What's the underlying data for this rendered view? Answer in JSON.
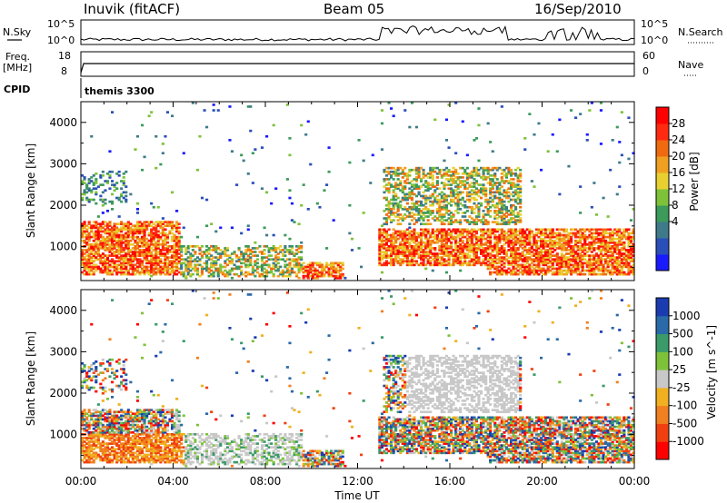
{
  "header": {
    "station": "Inuvik (fitACF)",
    "beam": "Beam 05",
    "date": "16/Sep/2010"
  },
  "status_strips": {
    "nsky_label": "N.Sky",
    "nsky_ticks": [
      "10^5",
      "10^0"
    ],
    "nsearch_label": "N.Search",
    "freq_label": "Freq.",
    "freq_unit": "[MHz]",
    "freq_ticks": [
      "18",
      "8"
    ],
    "nave_ticks": [
      "60",
      "0"
    ],
    "nave_label": "Nave",
    "cpid_label": "CPID",
    "cpid_value": "themis 3300"
  },
  "chart_data": [
    {
      "type": "heatmap",
      "panel": "power",
      "ylabel": "Slant Range [km]",
      "yticks": [
        "4000",
        "3000",
        "2000",
        "1000"
      ],
      "ylim": [
        180,
        4500
      ],
      "xlim": [
        0,
        24
      ],
      "colorbar": {
        "label": "Power [dB]",
        "ticks": [
          "28",
          "24",
          "20",
          "16",
          "12",
          "8",
          "4"
        ],
        "colors": [
          "#1a1aff",
          "#2a4fb8",
          "#3e7a8a",
          "#3c9a5a",
          "#7ec23a",
          "#e8d030",
          "#f0a020",
          "#f06a10",
          "#ff2a10",
          "#ff0000"
        ]
      },
      "echo_regions": [
        {
          "t": [
            0.0,
            4.3
          ],
          "r": [
            300,
            1600
          ],
          "level": "high"
        },
        {
          "t": [
            4.0,
            9.5
          ],
          "r": [
            250,
            1000
          ],
          "level": "mixed"
        },
        {
          "t": [
            9.3,
            11.3
          ],
          "r": [
            200,
            600
          ],
          "level": "high"
        },
        {
          "t": [
            12.8,
            22.0
          ],
          "r": [
            500,
            1400
          ],
          "level": "high"
        },
        {
          "t": [
            13.0,
            19.0
          ],
          "r": [
            1500,
            2900
          ],
          "level": "mixed"
        },
        {
          "t": [
            17.5,
            24.0
          ],
          "r": [
            300,
            1400
          ],
          "level": "high"
        },
        {
          "t": [
            0.0,
            2.0
          ],
          "r": [
            2000,
            2800
          ],
          "level": "low"
        }
      ]
    },
    {
      "type": "heatmap",
      "panel": "velocity",
      "ylabel": "Slant Range [km]",
      "yticks": [
        "4000",
        "3000",
        "2000",
        "1000"
      ],
      "xlabel": "Time UT",
      "xticks": [
        "00:00",
        "04:00",
        "08:00",
        "12:00",
        "16:00",
        "20:00",
        "00:00"
      ],
      "ylim": [
        180,
        4500
      ],
      "xlim": [
        0,
        24
      ],
      "colorbar": {
        "label": "Velocity [m s^-1]",
        "ticks": [
          "1000",
          "500",
          "100",
          "25",
          "-25",
          "-100",
          "-500",
          "-1000"
        ],
        "colors": [
          "#1a3cb0",
          "#2a6aa8",
          "#3a9a6a",
          "#7ec23a",
          "#c8c8c8",
          "#f0b020",
          "#f08020",
          "#f04010",
          "#ff0000"
        ]
      },
      "ground_scatter_color": "#c0c0c0"
    }
  ]
}
